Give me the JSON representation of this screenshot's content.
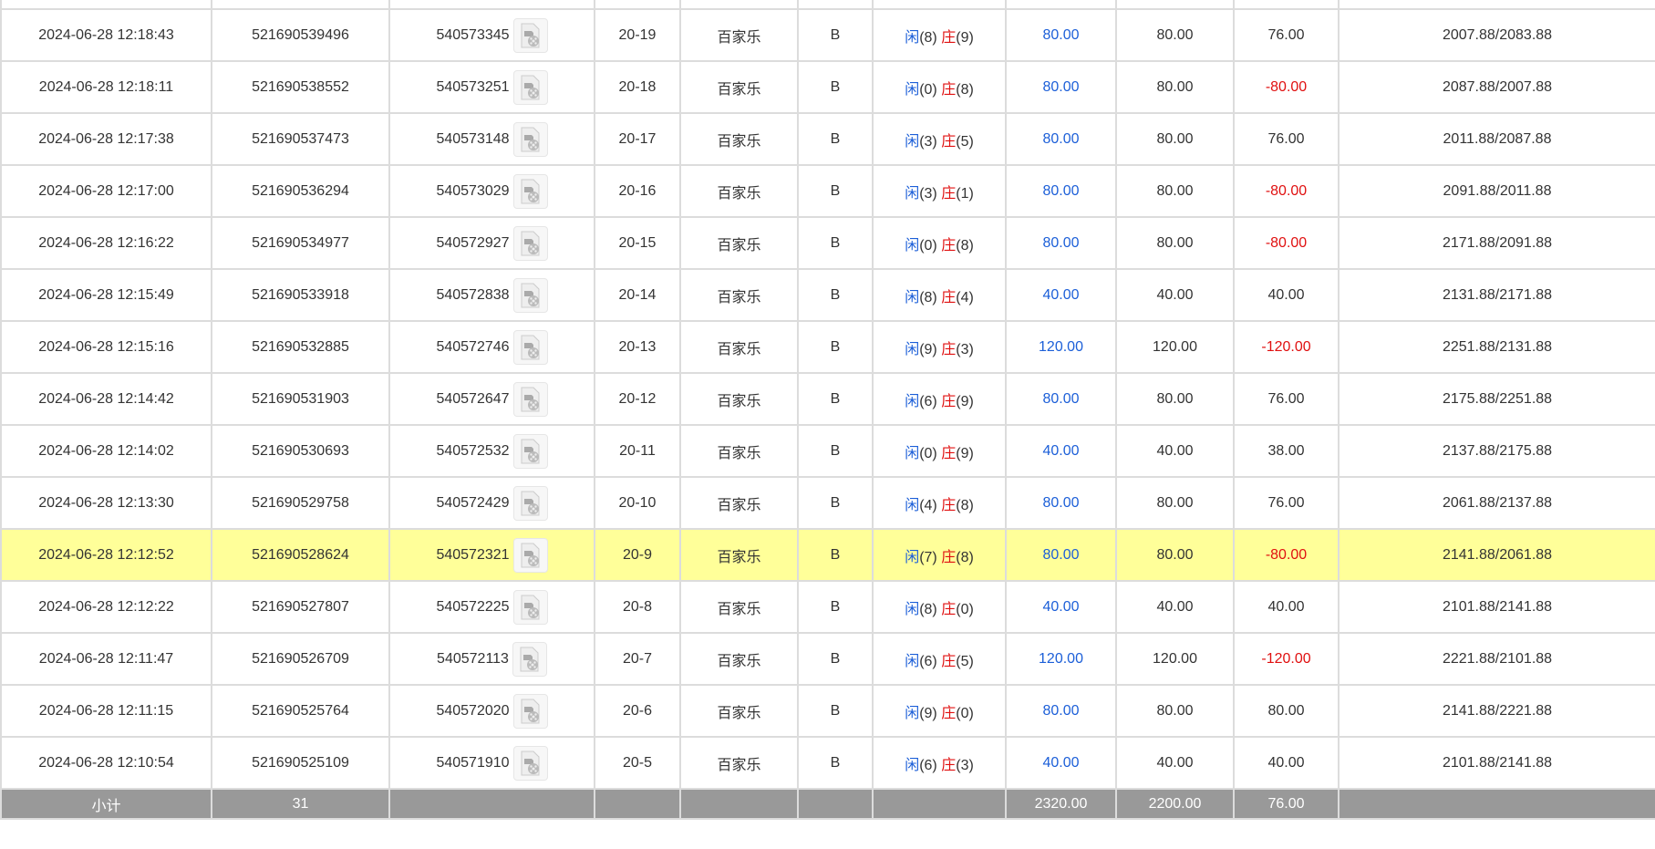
{
  "colors": {
    "bet": "#1c5fd8",
    "loss": "#e01010",
    "highlight": "#ffff99",
    "footer": "#999999"
  },
  "rows": [
    {
      "time": "",
      "order": "",
      "round": "",
      "shoe": "",
      "game": "",
      "bet_on": "",
      "player": "",
      "banker": "",
      "bet": "",
      "valid": "",
      "result": "",
      "balance": "",
      "partial": true
    },
    {
      "time": "2024-06-28 12:18:43",
      "order": "521690539496",
      "round": "540573345",
      "shoe": "20-19",
      "game": "百家乐",
      "bet_on": "B",
      "player": "(8)",
      "banker": "(9)",
      "bet": "80.00",
      "valid": "80.00",
      "result": "76.00",
      "balance": "2007.88/2083.88"
    },
    {
      "time": "2024-06-28 12:18:11",
      "order": "521690538552",
      "round": "540573251",
      "shoe": "20-18",
      "game": "百家乐",
      "bet_on": "B",
      "player": "(0)",
      "banker": "(8)",
      "bet": "80.00",
      "valid": "80.00",
      "result": "-80.00",
      "balance": "2087.88/2007.88"
    },
    {
      "time": "2024-06-28 12:17:38",
      "order": "521690537473",
      "round": "540573148",
      "shoe": "20-17",
      "game": "百家乐",
      "bet_on": "B",
      "player": "(3)",
      "banker": "(5)",
      "bet": "80.00",
      "valid": "80.00",
      "result": "76.00",
      "balance": "2011.88/2087.88"
    },
    {
      "time": "2024-06-28 12:17:00",
      "order": "521690536294",
      "round": "540573029",
      "shoe": "20-16",
      "game": "百家乐",
      "bet_on": "B",
      "player": "(3)",
      "banker": "(1)",
      "bet": "80.00",
      "valid": "80.00",
      "result": "-80.00",
      "balance": "2091.88/2011.88"
    },
    {
      "time": "2024-06-28 12:16:22",
      "order": "521690534977",
      "round": "540572927",
      "shoe": "20-15",
      "game": "百家乐",
      "bet_on": "B",
      "player": "(0)",
      "banker": "(8)",
      "bet": "80.00",
      "valid": "80.00",
      "result": "-80.00",
      "balance": "2171.88/2091.88"
    },
    {
      "time": "2024-06-28 12:15:49",
      "order": "521690533918",
      "round": "540572838",
      "shoe": "20-14",
      "game": "百家乐",
      "bet_on": "B",
      "player": "(8)",
      "banker": "(4)",
      "bet": "40.00",
      "valid": "40.00",
      "result": "40.00",
      "balance": "2131.88/2171.88"
    },
    {
      "time": "2024-06-28 12:15:16",
      "order": "521690532885",
      "round": "540572746",
      "shoe": "20-13",
      "game": "百家乐",
      "bet_on": "B",
      "player": "(9)",
      "banker": "(3)",
      "bet": "120.00",
      "valid": "120.00",
      "result": "-120.00",
      "balance": "2251.88/2131.88"
    },
    {
      "time": "2024-06-28 12:14:42",
      "order": "521690531903",
      "round": "540572647",
      "shoe": "20-12",
      "game": "百家乐",
      "bet_on": "B",
      "player": "(6)",
      "banker": "(9)",
      "bet": "80.00",
      "valid": "80.00",
      "result": "76.00",
      "balance": "2175.88/2251.88"
    },
    {
      "time": "2024-06-28 12:14:02",
      "order": "521690530693",
      "round": "540572532",
      "shoe": "20-11",
      "game": "百家乐",
      "bet_on": "B",
      "player": "(0)",
      "banker": "(9)",
      "bet": "40.00",
      "valid": "40.00",
      "result": "38.00",
      "balance": "2137.88/2175.88"
    },
    {
      "time": "2024-06-28 12:13:30",
      "order": "521690529758",
      "round": "540572429",
      "shoe": "20-10",
      "game": "百家乐",
      "bet_on": "B",
      "player": "(4)",
      "banker": "(8)",
      "bet": "80.00",
      "valid": "80.00",
      "result": "76.00",
      "balance": "2061.88/2137.88"
    },
    {
      "time": "2024-06-28 12:12:52",
      "order": "521690528624",
      "round": "540572321",
      "shoe": "20-9",
      "game": "百家乐",
      "bet_on": "B",
      "player": "(7)",
      "banker": "(8)",
      "bet": "80.00",
      "valid": "80.00",
      "result": "-80.00",
      "balance": "2141.88/2061.88",
      "highlighted": true
    },
    {
      "time": "2024-06-28 12:12:22",
      "order": "521690527807",
      "round": "540572225",
      "shoe": "20-8",
      "game": "百家乐",
      "bet_on": "B",
      "player": "(8)",
      "banker": "(0)",
      "bet": "40.00",
      "valid": "40.00",
      "result": "40.00",
      "balance": "2101.88/2141.88"
    },
    {
      "time": "2024-06-28 12:11:47",
      "order": "521690526709",
      "round": "540572113",
      "shoe": "20-7",
      "game": "百家乐",
      "bet_on": "B",
      "player": "(6)",
      "banker": "(5)",
      "bet": "120.00",
      "valid": "120.00",
      "result": "-120.00",
      "balance": "2221.88/2101.88"
    },
    {
      "time": "2024-06-28 12:11:15",
      "order": "521690525764",
      "round": "540572020",
      "shoe": "20-6",
      "game": "百家乐",
      "bet_on": "B",
      "player": "(9)",
      "banker": "(0)",
      "bet": "80.00",
      "valid": "80.00",
      "result": "80.00",
      "balance": "2141.88/2221.88"
    },
    {
      "time": "2024-06-28 12:10:54",
      "order": "521690525109",
      "round": "540571910",
      "shoe": "20-5",
      "game": "百家乐",
      "bet_on": "B",
      "player": "(6)",
      "banker": "(3)",
      "bet": "40.00",
      "valid": "40.00",
      "result": "40.00",
      "balance": "2101.88/2141.88"
    }
  ],
  "labels": {
    "player": "闲",
    "banker": "庄"
  },
  "footer": {
    "label": "小计",
    "count": "31",
    "bet_total": "2320.00",
    "valid_total": "2200.00",
    "result_total": "76.00"
  },
  "icons": {
    "replay": "video-file-icon"
  }
}
